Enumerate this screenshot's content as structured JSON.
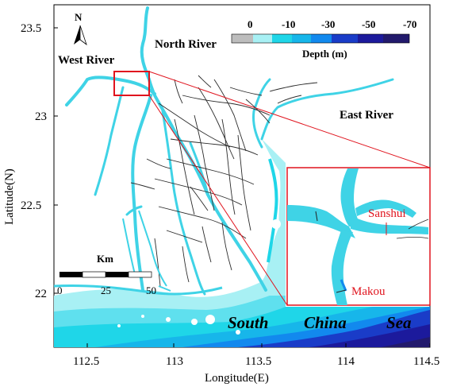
{
  "map": {
    "north_label": "N",
    "rivers": {
      "west": "West River",
      "north": "North River",
      "east": "East River"
    },
    "sea_words": [
      "South",
      "China",
      "Sea"
    ],
    "inset_stations": [
      "Sanshui",
      "Makou"
    ],
    "legend": {
      "title": "Depth (m)",
      "ticks": [
        "0",
        "-10",
        "-30",
        "-50",
        "-70"
      ],
      "colors": [
        "#bdbdbd",
        "#a8f0f4",
        "#1fd6e8",
        "#17b6ea",
        "#1289ee",
        "#1a3cc8",
        "#1c1a9c",
        "#221a6c"
      ]
    },
    "scalebar": {
      "title": "Km",
      "ticks": [
        "0",
        "25",
        "50"
      ]
    },
    "axes": {
      "xlabel": "Longitude(E)",
      "ylabel": "Latitude(N)",
      "xticks": [
        "112.5",
        "113",
        "113.5",
        "114",
        "114.5"
      ],
      "yticks": [
        "23.5",
        "23",
        "22.5",
        "22"
      ]
    },
    "colors": {
      "river": "#3fd3e6",
      "shallow": "#a8f0f4",
      "inset_frame": "#e0141e"
    }
  }
}
